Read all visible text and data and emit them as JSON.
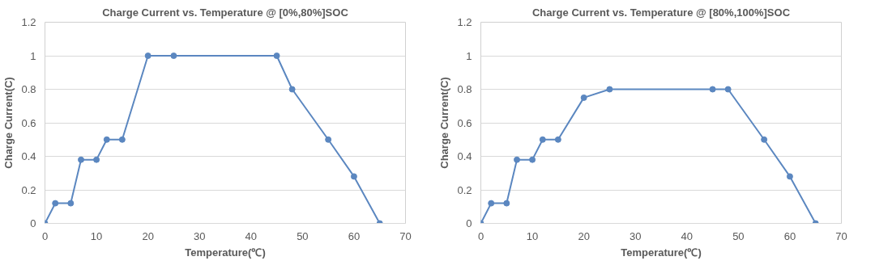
{
  "chart_data": [
    {
      "type": "line",
      "title": "Charge Current vs. Temperature @ [0%,80%]SOC",
      "xlabel": "Temperature(℃)",
      "ylabel": "Charge Current(C)",
      "x": [
        0,
        2,
        5,
        7,
        10,
        12,
        15,
        20,
        25,
        45,
        48,
        55,
        60,
        65
      ],
      "series": [
        {
          "color": "#5b87c0",
          "values": [
            0,
            0.12,
            0.12,
            0.38,
            0.38,
            0.5,
            0.5,
            1,
            1,
            1,
            0.8,
            0.5,
            0.28,
            0
          ]
        }
      ],
      "xlim": [
        0,
        70
      ],
      "xticks": [
        0,
        10,
        20,
        30,
        40,
        50,
        60,
        70
      ],
      "ylim": [
        0,
        1.2
      ],
      "yticks": [
        0,
        0.2,
        0.4,
        0.6,
        0.8,
        1,
        1.2
      ],
      "grid": "y",
      "marker": "circle",
      "line_style": "solid"
    },
    {
      "type": "line",
      "title": "Charge Current vs. Temperature @ [80%,100%]SOC",
      "xlabel": "Temperature(℃)",
      "ylabel": "Charge Current(C)",
      "x": [
        0,
        2,
        5,
        7,
        10,
        12,
        15,
        20,
        25,
        45,
        48,
        55,
        60,
        65
      ],
      "series": [
        {
          "color": "#5b87c0",
          "values": [
            0,
            0.12,
            0.12,
            0.38,
            0.38,
            0.5,
            0.5,
            0.75,
            0.8,
            0.8,
            0.8,
            0.5,
            0.28,
            0
          ]
        }
      ],
      "xlim": [
        0,
        70
      ],
      "xticks": [
        0,
        10,
        20,
        30,
        40,
        50,
        60,
        70
      ],
      "ylim": [
        0,
        1.2
      ],
      "yticks": [
        0,
        0.2,
        0.4,
        0.6,
        0.8,
        1,
        1.2
      ],
      "grid": "y",
      "marker": "circle",
      "line_style": "solid"
    }
  ]
}
